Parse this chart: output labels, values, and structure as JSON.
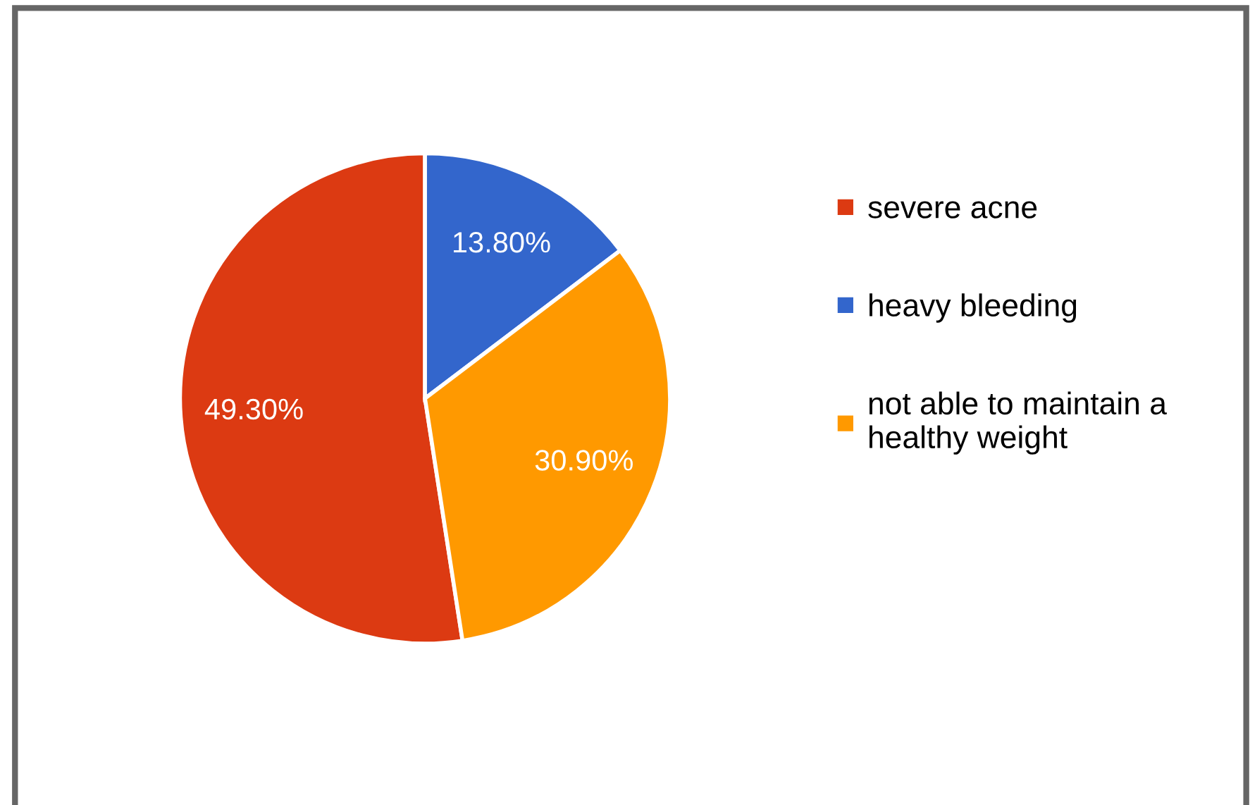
{
  "chart_data": {
    "type": "pie",
    "categories": [
      "severe acne",
      "heavy bleeding",
      "not able to maintain a healthy weight"
    ],
    "values": [
      49.3,
      13.8,
      30.9
    ],
    "colors": [
      "#dc3a12",
      "#3366cc",
      "#ff9900"
    ],
    "value_labels": [
      "49.30%",
      "13.80%",
      "30.90%"
    ],
    "legend": "right"
  }
}
